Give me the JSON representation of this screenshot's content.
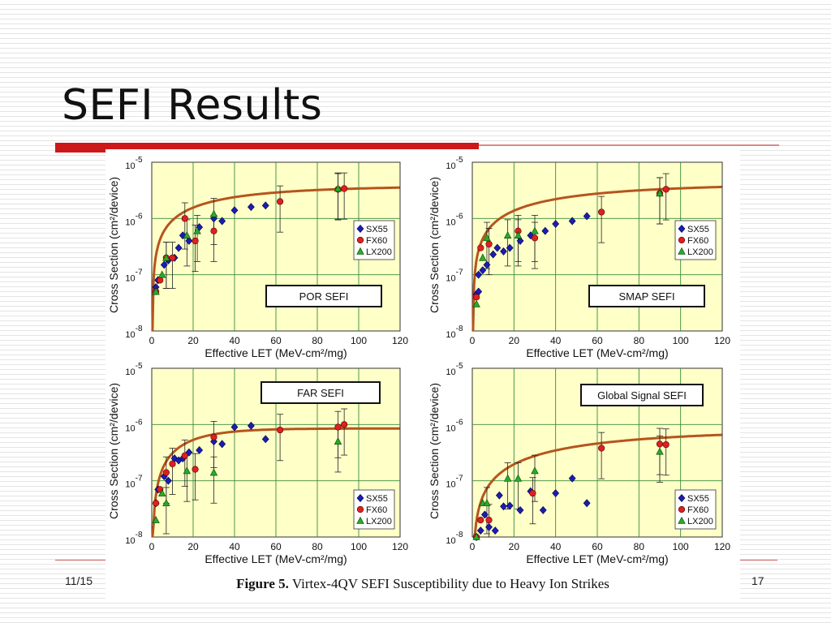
{
  "slide": {
    "title": "SEFI Results",
    "footer_date": "11/15",
    "page_number": "17",
    "caption_label": "Figure 5.",
    "caption_text": " Virtex-4QV SEFI Susceptibility due to Heavy Ion Strikes"
  },
  "colors": {
    "plot_bg": "#ffffc8",
    "grid": "#3a8a3a",
    "fit": "#b5551d",
    "sx55": "#1c1cb4",
    "fx60": "#dd2020",
    "lx200": "#2aaa2a",
    "red_bar": "#cc1818"
  },
  "chart_data": [
    {
      "type": "scatter",
      "title": "POR SEFI",
      "xlabel": "Effective LET (MeV-cm²/mg)",
      "ylabel": "Cross Section (cm²/device)",
      "xlim": [
        0,
        120
      ],
      "ylim": [
        1e-08,
        1e-05
      ],
      "y_scale": "log",
      "x_ticks": [
        "0",
        "20",
        "40",
        "60",
        "80",
        "100",
        "120"
      ],
      "y_ticks": [
        "10-8",
        "10-7",
        "10-6",
        "10-5"
      ],
      "grid": true,
      "legend_position": "right",
      "legend": [
        "SX55",
        "FX60",
        "LX200"
      ],
      "fit": {
        "A": 3.8e-06,
        "L0": 0.3,
        "W": 40,
        "s": 0.9
      },
      "series": [
        {
          "name": "SX55",
          "marker": "diamond",
          "points": [
            [
              2,
              6e-08
            ],
            [
              3,
              8e-08
            ],
            [
              6,
              1.5e-07
            ],
            [
              8,
              1.8e-07
            ],
            [
              11,
              2e-07
            ],
            [
              13,
              3e-07
            ],
            [
              15,
              5e-07
            ],
            [
              18,
              4e-07
            ],
            [
              23,
              7e-07
            ],
            [
              30,
              1e-06
            ],
            [
              34,
              9e-07
            ],
            [
              40,
              1.4e-06
            ],
            [
              48,
              1.6e-06
            ],
            [
              55,
              1.7e-06
            ]
          ]
        },
        {
          "name": "FX60",
          "marker": "circle",
          "points": [
            [
              2,
              5e-08
            ],
            [
              4,
              8e-08
            ],
            [
              7,
              2e-07
            ],
            [
              10,
              2e-07
            ],
            [
              16,
              1e-06
            ],
            [
              21,
              4e-07
            ],
            [
              30,
              6e-07
            ],
            [
              62,
              2e-06
            ],
            [
              90,
              3.3e-06
            ],
            [
              93,
              3.4e-06
            ]
          ]
        },
        {
          "name": "LX200",
          "marker": "triangle",
          "points": [
            [
              2,
              5e-08
            ],
            [
              5,
              1e-07
            ],
            [
              7,
              2e-07
            ],
            [
              17,
              5e-07
            ],
            [
              22,
              6e-07
            ],
            [
              30,
              1.2e-06
            ],
            [
              90,
              3.4e-06
            ]
          ]
        }
      ]
    },
    {
      "type": "scatter",
      "title": "SMAP SEFI",
      "xlabel": "Effective LET (MeV-cm²/mg)",
      "ylabel": "Cross Section (cm²/device)",
      "xlim": [
        0,
        120
      ],
      "ylim": [
        1e-08,
        1e-05
      ],
      "y_scale": "log",
      "x_ticks": [
        "0",
        "20",
        "40",
        "60",
        "80",
        "100",
        "120"
      ],
      "y_ticks": [
        "10-8",
        "10-7",
        "10-6",
        "10-5"
      ],
      "grid": true,
      "legend_position": "right",
      "legend": [
        "SX55",
        "FX60",
        "LX200"
      ],
      "fit": {
        "A": 4.2e-06,
        "L0": 0.3,
        "W": 55,
        "s": 0.9
      },
      "series": [
        {
          "name": "SX55",
          "marker": "diamond",
          "points": [
            [
              2,
              4.5e-08
            ],
            [
              3,
              5e-08
            ],
            [
              3,
              1e-07
            ],
            [
              5,
              1.2e-07
            ],
            [
              7,
              1.5e-07
            ],
            [
              10,
              2.3e-07
            ],
            [
              12,
              3e-07
            ],
            [
              15,
              2.6e-07
            ],
            [
              18,
              3e-07
            ],
            [
              23,
              4e-07
            ],
            [
              28,
              5e-07
            ],
            [
              35,
              6e-07
            ],
            [
              40,
              8e-07
            ],
            [
              48,
              9e-07
            ],
            [
              55,
              1.1e-06
            ]
          ]
        },
        {
          "name": "FX60",
          "marker": "circle",
          "points": [
            [
              2,
              4e-08
            ],
            [
              4,
              3e-07
            ],
            [
              8,
              3.5e-07
            ],
            [
              22,
              6e-07
            ],
            [
              30,
              4.5e-07
            ],
            [
              62,
              1.3e-06
            ],
            [
              90,
              2.8e-06
            ],
            [
              93,
              3.3e-06
            ]
          ]
        },
        {
          "name": "LX200",
          "marker": "triangle",
          "points": [
            [
              2,
              3e-08
            ],
            [
              5,
              2e-07
            ],
            [
              7,
              4.5e-07
            ],
            [
              17,
              5e-07
            ],
            [
              22,
              5e-07
            ],
            [
              30,
              6e-07
            ],
            [
              90,
              2.8e-06
            ]
          ]
        }
      ]
    },
    {
      "type": "scatter",
      "title": "FAR SEFI",
      "xlabel": "Effective LET (MeV-cm²/mg)",
      "ylabel": "Cross Section (cm²/device)",
      "xlim": [
        0,
        120
      ],
      "ylim": [
        1e-08,
        1e-05
      ],
      "y_scale": "log",
      "x_ticks": [
        "0",
        "20",
        "40",
        "60",
        "80",
        "100",
        "120"
      ],
      "y_ticks": [
        "10-8",
        "10-7",
        "10-6",
        "10-5"
      ],
      "grid": true,
      "legend_position": "right",
      "legend": [
        "SX55",
        "FX60",
        "LX200"
      ],
      "fit": {
        "A": 8.5e-07,
        "L0": 0.3,
        "W": 20,
        "s": 1.1
      },
      "series": [
        {
          "name": "SX55",
          "marker": "diamond",
          "points": [
            [
              2,
              4e-08
            ],
            [
              3,
              7e-08
            ],
            [
              6,
              1.2e-07
            ],
            [
              8,
              1e-07
            ],
            [
              11,
              2.5e-07
            ],
            [
              13,
              2.3e-07
            ],
            [
              15,
              2.5e-07
            ],
            [
              18,
              3.2e-07
            ],
            [
              23,
              3.5e-07
            ],
            [
              30,
              5e-07
            ],
            [
              34,
              4.5e-07
            ],
            [
              40,
              9e-07
            ],
            [
              48,
              9.5e-07
            ],
            [
              55,
              5.5e-07
            ]
          ]
        },
        {
          "name": "FX60",
          "marker": "circle",
          "points": [
            [
              2,
              4e-08
            ],
            [
              4,
              7e-08
            ],
            [
              7,
              1.4e-07
            ],
            [
              10,
              2e-07
            ],
            [
              16,
              2.8e-07
            ],
            [
              21,
              1.6e-07
            ],
            [
              30,
              6e-07
            ],
            [
              62,
              8e-07
            ],
            [
              90,
              9e-07
            ],
            [
              93,
              1e-06
            ]
          ]
        },
        {
          "name": "LX200",
          "marker": "triangle",
          "points": [
            [
              2,
              2e-08
            ],
            [
              5,
              6e-08
            ],
            [
              7,
              4e-08
            ],
            [
              17,
              1.5e-07
            ],
            [
              30,
              1.4e-07
            ],
            [
              90,
              5e-07
            ]
          ]
        }
      ]
    },
    {
      "type": "scatter",
      "title": "Global Signal SEFI",
      "xlabel": "Effective LET (MeV-cm²/mg)",
      "ylabel": "Cross Section (cm²/device)",
      "xlim": [
        0,
        120
      ],
      "ylim": [
        1e-08,
        1e-05
      ],
      "y_scale": "log",
      "x_ticks": [
        "0",
        "20",
        "40",
        "60",
        "80",
        "100",
        "120"
      ],
      "y_ticks": [
        "10-8",
        "10-7",
        "10-6",
        "10-5"
      ],
      "grid": true,
      "legend_position": "right",
      "legend": [
        "SX55",
        "FX60",
        "LX200"
      ],
      "fit": {
        "A": 8e-07,
        "L0": 0.3,
        "W": 70,
        "s": 1.0
      },
      "series": [
        {
          "name": "SX55",
          "marker": "diamond",
          "points": [
            [
              2,
              1e-08
            ],
            [
              4,
              1.3e-08
            ],
            [
              6,
              2.5e-08
            ],
            [
              8,
              1.5e-08
            ],
            [
              11,
              1.3e-08
            ],
            [
              13,
              5.5e-08
            ],
            [
              15,
              3.5e-08
            ],
            [
              18,
              3.6e-08
            ],
            [
              23,
              3e-08
            ],
            [
              28,
              6.5e-08
            ],
            [
              34,
              3e-08
            ],
            [
              40,
              6e-08
            ],
            [
              48,
              1.1e-07
            ],
            [
              55,
              4e-08
            ]
          ]
        },
        {
          "name": "FX60",
          "marker": "circle",
          "points": [
            [
              2,
              1e-08
            ],
            [
              4,
              2e-08
            ],
            [
              8,
              2e-08
            ],
            [
              29,
              6e-08
            ],
            [
              62,
              3.8e-07
            ],
            [
              90,
              4.5e-07
            ],
            [
              93,
              4.4e-07
            ]
          ]
        },
        {
          "name": "LX200",
          "marker": "triangle",
          "points": [
            [
              2,
              1e-08
            ],
            [
              5,
              4e-08
            ],
            [
              7,
              4e-08
            ],
            [
              17,
              1.1e-07
            ],
            [
              22,
              1.1e-07
            ],
            [
              30,
              1.5e-07
            ],
            [
              90,
              3.3e-07
            ]
          ]
        }
      ]
    }
  ]
}
